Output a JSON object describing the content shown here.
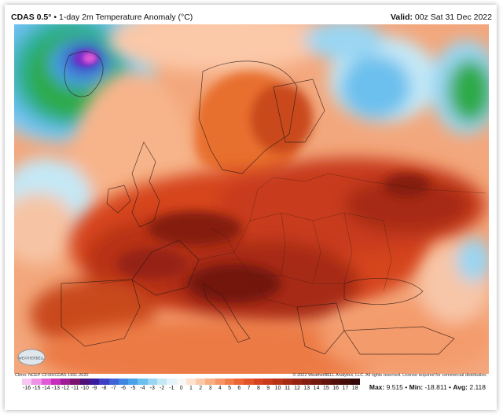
{
  "header": {
    "model": "CDAS 0.5°",
    "title": " • 1-day 2m Temperature Anomaly (°C)",
    "valid_label": "Valid:",
    "valid_time": " 00z Sat 31 Dec 2022"
  },
  "credits": {
    "climo": "Climo: NCEP CFSR/CDAS 1991-2020",
    "copyright": "© 2022 WeatherBELL Analytics, LLC. All rights reserved. License required for commercial distribution.",
    "logo_text": "WEATHERBELL"
  },
  "legend": {
    "ticks": [
      "-16",
      "-15",
      "-14",
      "-13",
      "-12",
      "-11",
      "-10",
      "-9",
      "-8",
      "-7",
      "-6",
      "-5",
      "-4",
      "-3",
      "-2",
      "-1",
      "0",
      "1",
      "2",
      "3",
      "4",
      "5",
      "6",
      "7",
      "8",
      "9",
      "10",
      "11",
      "12",
      "13",
      "14",
      "15",
      "16",
      "17",
      "18"
    ],
    "colors": [
      "#f7c6f2",
      "#ee92e6",
      "#e05ad6",
      "#c62fb9",
      "#9e1d95",
      "#7a1270",
      "#4e0f78",
      "#3a1b9e",
      "#3d3fc4",
      "#3f63d6",
      "#3f86e0",
      "#4aa3e8",
      "#6cc0ee",
      "#9ad6f2",
      "#c4e8f6",
      "#e4f4fa",
      "#f7f7f7",
      "#fce2cf",
      "#fbc8a8",
      "#f9ad84",
      "#f69463",
      "#f27c48",
      "#ec6634",
      "#e35428",
      "#d6441f",
      "#c83a1a",
      "#b83216",
      "#a72b14",
      "#962412",
      "#851e10",
      "#74190e",
      "#63140c",
      "#52100a",
      "#420c08",
      "#330806"
    ]
  },
  "stats": {
    "max_label": "Max:",
    "max": "9.515",
    "min_label": "Min:",
    "min": "-18.811",
    "avg_label": "Avg:",
    "avg": "2.118"
  },
  "map": {
    "region": "Europe",
    "variable": "2m temperature anomaly",
    "colors": {
      "sea_base": "#f3a77c",
      "warm": "#e8702f",
      "hot": "#c94a1c",
      "very_hot": "#9e2a12",
      "extreme": "#6e160b",
      "cool_blue": "#5aa8e6",
      "cold_green": "#2faa4a",
      "very_cold": "#7a2fc9"
    }
  }
}
